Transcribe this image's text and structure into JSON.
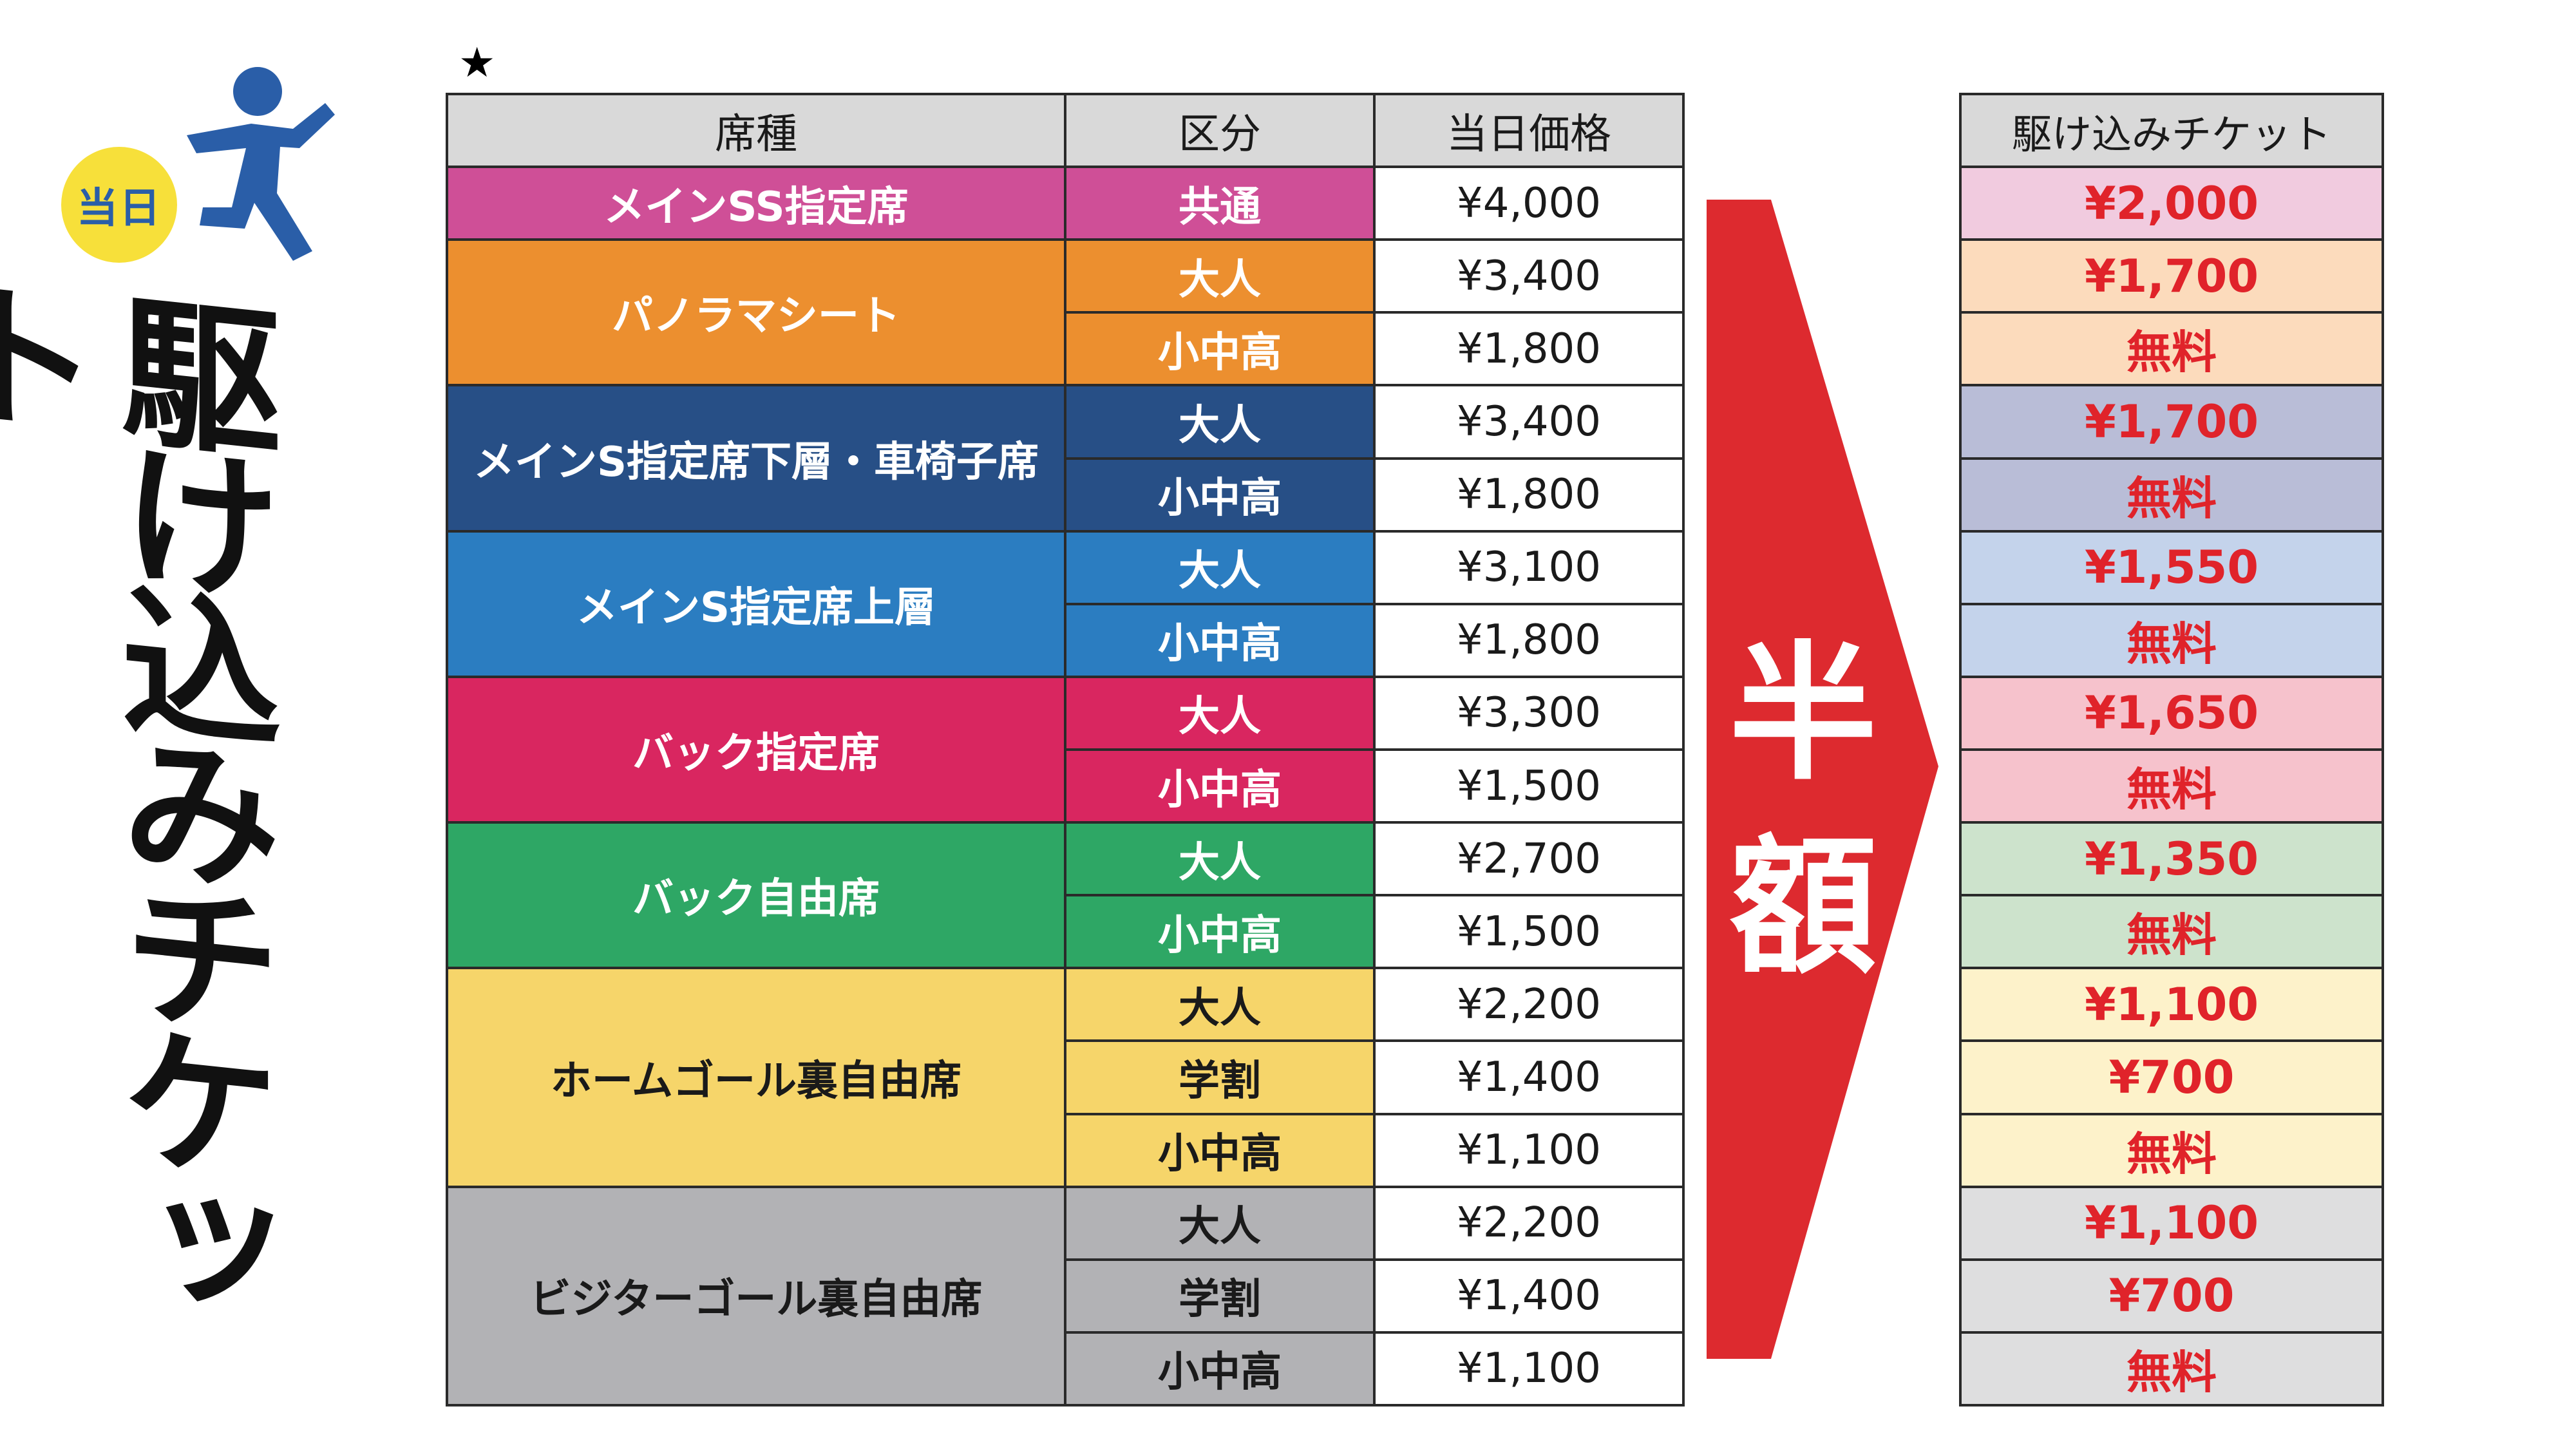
{
  "badge": "当日",
  "title": "駆け込みチケット",
  "star": "★",
  "headers": {
    "seat": "席種",
    "category": "区分",
    "price": "当日価格",
    "rush": "駆け込みチケット"
  },
  "half_price": "半額",
  "colors": {
    "arrow": "#dd2a2f",
    "runner": "#2a5ea8",
    "badge": "#f7e03a",
    "rush_price_text": "#e0232a"
  },
  "rows": [
    {
      "seat": "メインSS指定席",
      "category": "共通",
      "price": "¥4,000",
      "rush": "¥2,000"
    },
    {
      "seat": "パノラマシート",
      "category": "大人",
      "price": "¥3,400",
      "rush": "¥1,700"
    },
    {
      "seat": "",
      "category": "小中高",
      "price": "¥1,800",
      "rush": "無料"
    },
    {
      "seat": "メインS指定席下層・車椅子席",
      "category": "大人",
      "price": "¥3,400",
      "rush": "¥1,700"
    },
    {
      "seat": "",
      "category": "小中高",
      "price": "¥1,800",
      "rush": "無料"
    },
    {
      "seat": "メインS指定席上層",
      "category": "大人",
      "price": "¥3,100",
      "rush": "¥1,550"
    },
    {
      "seat": "",
      "category": "小中高",
      "price": "¥1,800",
      "rush": "無料"
    },
    {
      "seat": "バック指定席",
      "category": "大人",
      "price": "¥3,300",
      "rush": "¥1,650"
    },
    {
      "seat": "",
      "category": "小中高",
      "price": "¥1,500",
      "rush": "無料"
    },
    {
      "seat": "バック自由席",
      "category": "大人",
      "price": "¥2,700",
      "rush": "¥1,350"
    },
    {
      "seat": "",
      "category": "小中高",
      "price": "¥1,500",
      "rush": "無料"
    },
    {
      "seat": "ホームゴール裏自由席",
      "category": "大人",
      "price": "¥2,200",
      "rush": "¥1,100"
    },
    {
      "seat": "",
      "category": "学割",
      "price": "¥1,400",
      "rush": "¥700"
    },
    {
      "seat": "",
      "category": "小中高",
      "price": "¥1,100",
      "rush": "無料"
    },
    {
      "seat": "ビジターゴール裏自由席",
      "category": "大人",
      "price": "¥2,200",
      "rush": "¥1,100"
    },
    {
      "seat": "",
      "category": "学割",
      "price": "¥1,400",
      "rush": "¥700"
    },
    {
      "seat": "",
      "category": "小中高",
      "price": "¥1,100",
      "rush": "無料"
    }
  ],
  "seat_colors": {
    "main_ss": "#cf4f97",
    "panorama": "#ec8f2f",
    "main_s_lower": "#274f86",
    "main_s_upper": "#2b7dc1",
    "back_reserved": "#d92660",
    "back_free": "#2ea765",
    "home_goal": "#f6d56a",
    "visitor_goal": "#b2b2b5"
  },
  "rush_colors": {
    "main_ss": "#f1cbdf",
    "panorama": "#fcdbbc",
    "main_s_lower": "#b9bdd7",
    "main_s_upper": "#c4d3eb",
    "back_reserved": "#f6c2cc",
    "back_free": "#cde3cc",
    "home_goal": "#fdf2ca",
    "visitor_goal": "#dededf"
  }
}
